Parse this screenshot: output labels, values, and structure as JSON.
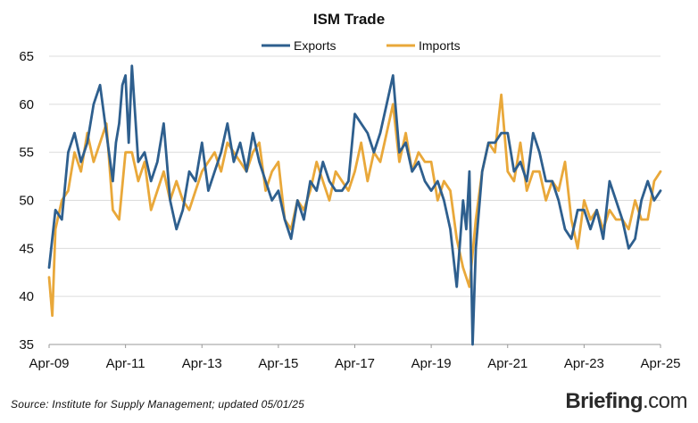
{
  "chart_data": {
    "type": "line",
    "title": "ISM Trade",
    "xlabel": "",
    "ylabel": "",
    "ylim": [
      35,
      65
    ],
    "yticks": [
      35,
      40,
      45,
      50,
      55,
      60,
      65
    ],
    "xlim": [
      "2009-04",
      "2025-04"
    ],
    "xticks": [
      "Apr-09",
      "Apr-11",
      "Apr-13",
      "Apr-15",
      "Apr-17",
      "Apr-19",
      "Apr-21",
      "Apr-23",
      "Apr-25"
    ],
    "grid": "horizontal",
    "legend": "top-center",
    "series": [
      {
        "name": "Exports",
        "color": "#2e5f8e",
        "x": [
          "2009-04",
          "2009-06",
          "2009-08",
          "2009-10",
          "2009-12",
          "2010-02",
          "2010-04",
          "2010-06",
          "2010-08",
          "2010-10",
          "2010-12",
          "2011-01",
          "2011-02",
          "2011-03",
          "2011-04",
          "2011-05",
          "2011-06",
          "2011-08",
          "2011-10",
          "2011-12",
          "2012-02",
          "2012-04",
          "2012-06",
          "2012-08",
          "2012-10",
          "2012-12",
          "2013-02",
          "2013-04",
          "2013-06",
          "2013-08",
          "2013-10",
          "2013-12",
          "2014-02",
          "2014-04",
          "2014-06",
          "2014-08",
          "2014-10",
          "2014-12",
          "2015-02",
          "2015-04",
          "2015-06",
          "2015-08",
          "2015-10",
          "2015-12",
          "2016-02",
          "2016-04",
          "2016-06",
          "2016-08",
          "2016-10",
          "2016-12",
          "2017-02",
          "2017-04",
          "2017-06",
          "2017-08",
          "2017-10",
          "2017-12",
          "2018-02",
          "2018-04",
          "2018-06",
          "2018-08",
          "2018-10",
          "2018-12",
          "2019-02",
          "2019-04",
          "2019-06",
          "2019-08",
          "2019-10",
          "2019-12",
          "2020-02",
          "2020-03",
          "2020-04",
          "2020-05",
          "2020-06",
          "2020-08",
          "2020-10",
          "2020-12",
          "2021-02",
          "2021-04",
          "2021-06",
          "2021-08",
          "2021-10",
          "2021-12",
          "2022-02",
          "2022-04",
          "2022-06",
          "2022-08",
          "2022-10",
          "2022-12",
          "2023-02",
          "2023-04",
          "2023-06",
          "2023-08",
          "2023-10",
          "2023-12",
          "2024-02",
          "2024-04",
          "2024-06",
          "2024-08",
          "2024-10",
          "2024-12",
          "2025-02",
          "2025-04"
        ],
        "values": [
          43,
          49,
          48,
          55,
          57,
          54,
          56,
          60,
          62,
          57,
          52,
          56,
          58,
          62,
          63,
          56,
          64,
          54,
          55,
          52,
          54,
          58,
          50,
          47,
          49,
          53,
          52,
          56,
          51,
          53,
          55,
          58,
          54,
          56,
          53,
          57,
          54,
          52,
          50,
          51,
          48,
          46,
          50,
          48,
          52,
          51,
          54,
          52,
          51,
          51,
          52,
          59,
          58,
          57,
          55,
          57,
          60,
          63,
          55,
          56,
          53,
          54,
          52,
          51,
          52,
          50,
          47,
          41,
          50,
          47,
          53,
          35,
          45,
          53,
          56,
          56,
          57,
          57,
          53,
          54,
          52,
          57,
          55,
          52,
          52,
          50,
          47,
          46,
          49,
          49,
          47,
          49,
          46,
          52,
          50,
          48,
          45,
          46,
          50,
          52,
          50,
          51
        ]
      },
      {
        "name": "Imports",
        "color": "#e9a83a",
        "x": [
          "2009-04",
          "2009-05",
          "2009-06",
          "2009-08",
          "2009-10",
          "2009-12",
          "2010-02",
          "2010-04",
          "2010-06",
          "2010-08",
          "2010-10",
          "2010-12",
          "2011-02",
          "2011-04",
          "2011-06",
          "2011-08",
          "2011-10",
          "2011-12",
          "2012-02",
          "2012-04",
          "2012-06",
          "2012-08",
          "2012-10",
          "2012-12",
          "2013-02",
          "2013-04",
          "2013-06",
          "2013-08",
          "2013-10",
          "2013-12",
          "2014-02",
          "2014-04",
          "2014-06",
          "2014-08",
          "2014-10",
          "2014-12",
          "2015-02",
          "2015-04",
          "2015-06",
          "2015-08",
          "2015-10",
          "2015-12",
          "2016-02",
          "2016-04",
          "2016-06",
          "2016-08",
          "2016-10",
          "2016-12",
          "2017-02",
          "2017-04",
          "2017-06",
          "2017-08",
          "2017-10",
          "2017-12",
          "2018-02",
          "2018-04",
          "2018-06",
          "2018-08",
          "2018-10",
          "2018-12",
          "2019-02",
          "2019-04",
          "2019-06",
          "2019-08",
          "2019-10",
          "2019-12",
          "2020-02",
          "2020-04",
          "2020-06",
          "2020-08",
          "2020-10",
          "2020-12",
          "2021-02",
          "2021-04",
          "2021-06",
          "2021-08",
          "2021-10",
          "2021-12",
          "2022-02",
          "2022-04",
          "2022-06",
          "2022-08",
          "2022-10",
          "2022-12",
          "2023-02",
          "2023-04",
          "2023-06",
          "2023-08",
          "2023-10",
          "2023-12",
          "2024-02",
          "2024-04",
          "2024-06",
          "2024-08",
          "2024-10",
          "2024-12",
          "2025-02",
          "2025-04"
        ],
        "values": [
          42,
          38,
          47,
          50,
          51,
          55,
          53,
          57,
          54,
          56,
          58,
          49,
          48,
          55,
          55,
          52,
          54,
          49,
          51,
          53,
          50,
          52,
          50,
          49,
          51,
          53,
          54,
          55,
          53,
          56,
          55,
          54,
          53,
          55,
          56,
          51,
          53,
          54,
          48,
          47,
          50,
          49,
          51,
          54,
          52,
          50,
          53,
          52,
          51,
          53,
          56,
          52,
          55,
          54,
          57,
          60,
          54,
          57,
          53,
          55,
          54,
          54,
          50,
          52,
          51,
          46,
          43,
          41,
          48,
          53,
          56,
          55,
          61,
          53,
          52,
          56,
          51,
          53,
          53,
          50,
          52,
          51,
          54,
          48,
          45,
          50,
          48,
          49,
          47,
          49,
          48,
          48,
          47,
          50,
          48,
          48,
          52,
          53
        ]
      }
    ]
  },
  "source": "Source: Institute for Supply Management; updated 05/01/25",
  "brand": {
    "name": "Briefing",
    "suffix": ".com"
  }
}
